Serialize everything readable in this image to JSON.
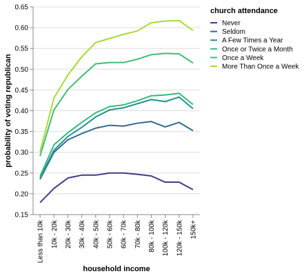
{
  "chart_data": {
    "type": "line",
    "title": "",
    "xlabel": "household income",
    "ylabel": "probability of voting republican",
    "ylim": [
      0.15,
      0.65
    ],
    "yticks": [
      0.15,
      0.2,
      0.25,
      0.3,
      0.35,
      0.4,
      0.45,
      0.5,
      0.55,
      0.6,
      0.65
    ],
    "grid": true,
    "legend_position": "right",
    "legend_title": "church attendance",
    "categories": [
      "Less than 10k",
      "10k - 20k",
      "20k - 30k",
      "30k - 40k",
      "40k - 50k",
      "50k - 60k",
      "60k - 70k",
      "70k - 80k",
      "80k - 100k",
      "100k - 120k",
      "120k - 150k",
      "150k+"
    ],
    "series": [
      {
        "name": "Never",
        "color": "#443983",
        "values": [
          0.179,
          0.213,
          0.238,
          0.245,
          0.245,
          0.25,
          0.25,
          0.247,
          0.243,
          0.228,
          0.228,
          0.21
        ]
      },
      {
        "name": "Seldom",
        "color": "#31688e",
        "values": [
          0.235,
          0.3,
          0.33,
          0.345,
          0.358,
          0.365,
          0.363,
          0.37,
          0.374,
          0.361,
          0.372,
          0.352
        ]
      },
      {
        "name": "A Few Times a Year",
        "color": "#21918c",
        "values": [
          0.237,
          0.305,
          0.338,
          0.36,
          0.385,
          0.402,
          0.407,
          0.417,
          0.427,
          0.422,
          0.433,
          0.405
        ]
      },
      {
        "name": "Once or Twice a Month",
        "color": "#35b779",
        "values": [
          0.242,
          0.318,
          0.347,
          0.372,
          0.395,
          0.41,
          0.414,
          0.424,
          0.436,
          0.438,
          0.442,
          0.415
        ]
      },
      {
        "name": "Once a Week",
        "color": "#3fbc73",
        "values": [
          0.291,
          0.402,
          0.451,
          0.483,
          0.513,
          0.516,
          0.516,
          0.524,
          0.535,
          0.538,
          0.537,
          0.515
        ]
      },
      {
        "name": "More Than Once a Week",
        "color": "#a5db36",
        "values": [
          0.301,
          0.431,
          0.486,
          0.53,
          0.564,
          0.574,
          0.584,
          0.592,
          0.612,
          0.616,
          0.617,
          0.593
        ]
      }
    ]
  }
}
